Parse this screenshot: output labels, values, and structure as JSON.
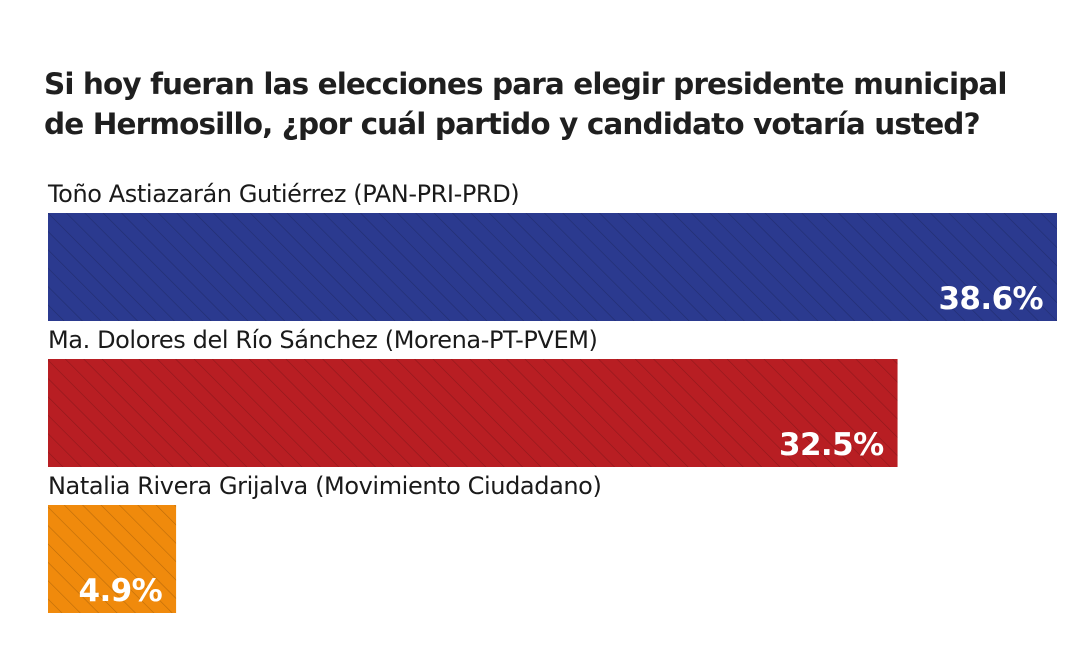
{
  "chart_data": {
    "type": "bar",
    "orientation": "horizontal",
    "title_lines": [
      "Si hoy fueran las elecciones para elegir presidente municipal",
      "de Hermosillo, ¿por cuál partido y candidato votaría usted?"
    ],
    "categories": [
      "Toño Astiazarán Gutiérrez (PAN-PRI-PRD)",
      "Ma. Dolores del Río Sánchez (Morena-PT-PVEM)",
      "Natalia Rivera Grijalva (Movimiento Ciudadano)"
    ],
    "values": [
      38.6,
      32.5,
      4.9
    ],
    "value_labels": [
      "38.6%",
      "32.5%",
      "4.9%"
    ],
    "colors": [
      "#2b3a8f",
      "#b81e23",
      "#f08a0c"
    ],
    "unit": "%",
    "xlim": [
      0,
      38.6
    ],
    "grid": false,
    "legend": "none"
  }
}
